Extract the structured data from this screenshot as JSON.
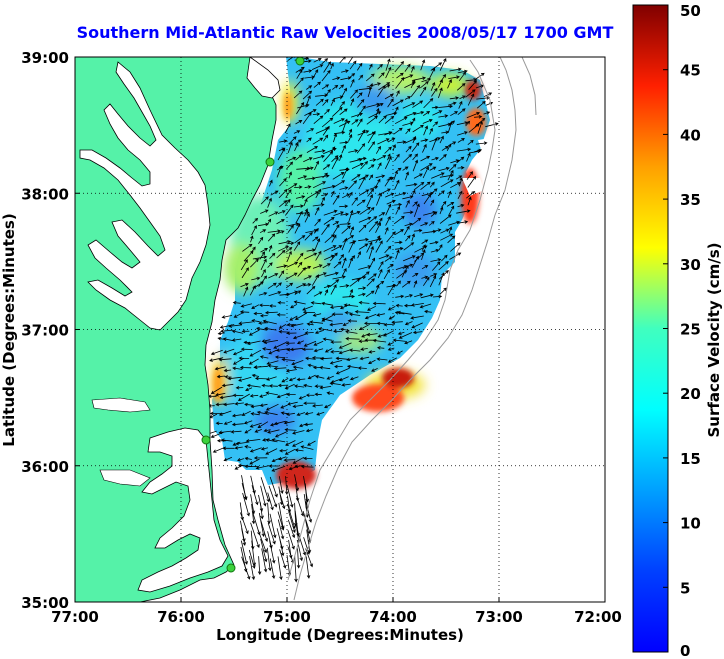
{
  "title": "Southern Mid-Atlantic Raw Velocities 2008/05/17 1700 GMT",
  "x_axis": {
    "label": "Longitude (Degrees:Minutes)",
    "ticks": [
      "77:00",
      "76:00",
      "75:00",
      "74:00",
      "73:00",
      "72:00"
    ]
  },
  "y_axis": {
    "label": "Latitude (Degrees:Minutes)",
    "ticks": [
      "39:00",
      "38:00",
      "37:00",
      "36:00",
      "35:00"
    ]
  },
  "colorbar": {
    "label": "Surface Velocity (cm/s)",
    "ticks": [
      "50",
      "45",
      "40",
      "35",
      "30",
      "25",
      "20",
      "15",
      "10",
      "5",
      "0"
    ],
    "min": 0,
    "max": 50,
    "colormap": "jet"
  },
  "colors": {
    "land": "#55f2a8",
    "coastline": "#000000",
    "title": "#0000ff",
    "station_marker": "#3cd13c"
  },
  "grid": "dotted",
  "legend_position": "right"
}
